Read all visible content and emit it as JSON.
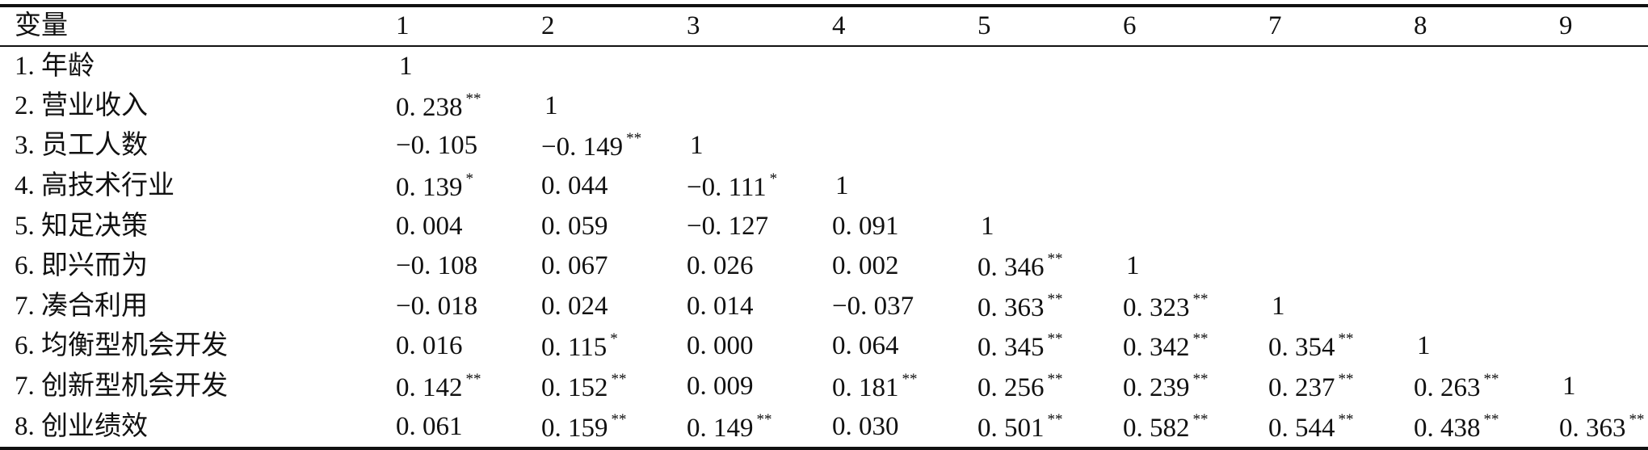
{
  "table": {
    "header": {
      "variable_label": "变量",
      "columns": [
        "1",
        "2",
        "3",
        "4",
        "5",
        "6",
        "7",
        "8",
        "9"
      ]
    },
    "rows": [
      {
        "label": "1. 年龄",
        "cells": [
          {
            "v": "1",
            "s": ""
          }
        ]
      },
      {
        "label": "2. 营业收入",
        "cells": [
          {
            "v": "0. 238",
            "s": "**"
          },
          {
            "v": "1",
            "s": ""
          }
        ]
      },
      {
        "label": "3. 员工人数",
        "cells": [
          {
            "v": "−0. 105",
            "s": ""
          },
          {
            "v": "−0. 149",
            "s": "**"
          },
          {
            "v": "1",
            "s": ""
          }
        ]
      },
      {
        "label": "4. 高技术行业",
        "cells": [
          {
            "v": "0. 139",
            "s": "*"
          },
          {
            "v": "0. 044",
            "s": ""
          },
          {
            "v": "−0. 111",
            "s": "*"
          },
          {
            "v": "1",
            "s": ""
          }
        ]
      },
      {
        "label": "5. 知足决策",
        "cells": [
          {
            "v": "0. 004",
            "s": ""
          },
          {
            "v": "0. 059",
            "s": ""
          },
          {
            "v": "−0. 127",
            "s": ""
          },
          {
            "v": "0. 091",
            "s": ""
          },
          {
            "v": "1",
            "s": ""
          }
        ]
      },
      {
        "label": "6. 即兴而为",
        "cells": [
          {
            "v": "−0. 108",
            "s": ""
          },
          {
            "v": "0. 067",
            "s": ""
          },
          {
            "v": "0. 026",
            "s": ""
          },
          {
            "v": "0. 002",
            "s": ""
          },
          {
            "v": "0. 346",
            "s": "**"
          },
          {
            "v": "1",
            "s": ""
          }
        ]
      },
      {
        "label": "7. 凑合利用",
        "cells": [
          {
            "v": "−0. 018",
            "s": ""
          },
          {
            "v": "0. 024",
            "s": ""
          },
          {
            "v": "0. 014",
            "s": ""
          },
          {
            "v": "−0. 037",
            "s": ""
          },
          {
            "v": "0. 363",
            "s": "**"
          },
          {
            "v": "0. 323",
            "s": "**"
          },
          {
            "v": "1",
            "s": ""
          }
        ]
      },
      {
        "label": "6. 均衡型机会开发",
        "cells": [
          {
            "v": "0. 016",
            "s": ""
          },
          {
            "v": "0. 115",
            "s": "*"
          },
          {
            "v": "0. 000",
            "s": ""
          },
          {
            "v": "0. 064",
            "s": ""
          },
          {
            "v": "0. 345",
            "s": "**"
          },
          {
            "v": "0. 342",
            "s": "**"
          },
          {
            "v": "0. 354",
            "s": "**"
          },
          {
            "v": "1",
            "s": ""
          }
        ]
      },
      {
        "label": "7. 创新型机会开发",
        "cells": [
          {
            "v": "0. 142",
            "s": "**"
          },
          {
            "v": "0. 152",
            "s": "**"
          },
          {
            "v": "0. 009",
            "s": ""
          },
          {
            "v": "0. 181",
            "s": "**"
          },
          {
            "v": "0. 256",
            "s": "**"
          },
          {
            "v": "0. 239",
            "s": "**"
          },
          {
            "v": "0. 237",
            "s": "**"
          },
          {
            "v": "0. 263",
            "s": "**"
          },
          {
            "v": "1",
            "s": ""
          }
        ]
      },
      {
        "label": "8. 创业绩效",
        "cells": [
          {
            "v": "0. 061",
            "s": ""
          },
          {
            "v": "0. 159",
            "s": "**"
          },
          {
            "v": "0. 149",
            "s": "**"
          },
          {
            "v": "0. 030",
            "s": ""
          },
          {
            "v": "0. 501",
            "s": "**"
          },
          {
            "v": "0. 582",
            "s": "**"
          },
          {
            "v": "0. 544",
            "s": "**"
          },
          {
            "v": "0. 438",
            "s": "**"
          },
          {
            "v": "0. 363",
            "s": "**"
          }
        ]
      }
    ]
  }
}
